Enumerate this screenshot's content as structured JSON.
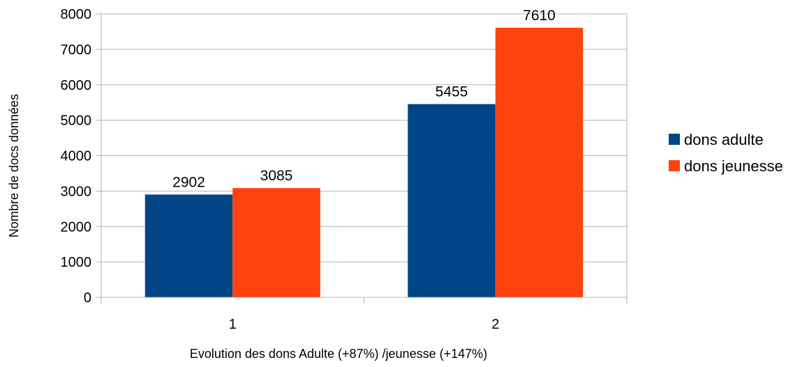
{
  "chart_data": {
    "type": "bar",
    "categories": [
      "1",
      "2"
    ],
    "series": [
      {
        "name": "dons adulte",
        "values": [
          2902,
          5455
        ],
        "color": "#004586"
      },
      {
        "name": "dons jeunesse",
        "values": [
          3085,
          7610
        ],
        "color": "#ff420e"
      }
    ],
    "xlabel": "Evolution des dons Adulte (+87%) /jeunesse (+147%)",
    "ylabel": "Nombre de docs données",
    "ylim": [
      0,
      8000
    ],
    "yticks": [
      0,
      1000,
      2000,
      3000,
      4000,
      5000,
      6000,
      7000,
      8000
    ],
    "grid": true,
    "gridline_color": "#b3b3b3",
    "legend_position": "right"
  }
}
